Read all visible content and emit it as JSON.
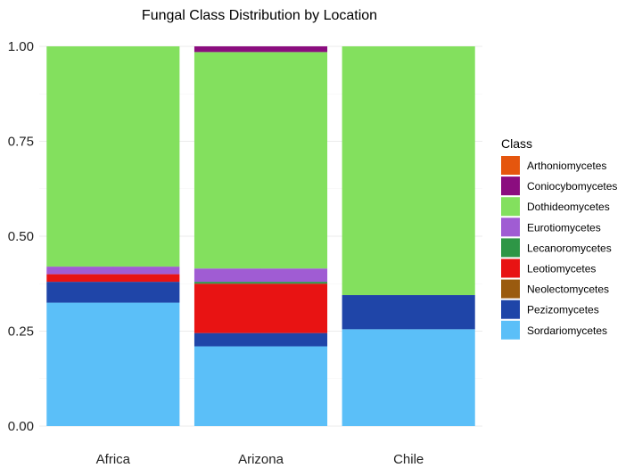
{
  "chart_data": {
    "type": "bar",
    "stacked": true,
    "normalized": true,
    "title": "Fungal Class Distribution by Location",
    "xlabel": "",
    "ylabel": "",
    "categories": [
      "Africa",
      "Arizona",
      "Chile"
    ],
    "ylim": [
      0,
      1
    ],
    "yticks": [
      "0.00",
      "0.25",
      "0.50",
      "0.75",
      "1.00"
    ],
    "grid": true,
    "legend": {
      "title": "Class",
      "placement": "right"
    },
    "series": [
      {
        "name": "Sordariomycetes",
        "color": "#5BBFF8",
        "values": [
          0.325,
          0.21,
          0.255
        ]
      },
      {
        "name": "Pezizomycetes",
        "color": "#1F45A8",
        "values": [
          0.055,
          0.035,
          0.09
        ]
      },
      {
        "name": "Neolectomycetes",
        "color": "#9A5B0F",
        "values": [
          0.0,
          0.0,
          0.0
        ]
      },
      {
        "name": "Leotiomycetes",
        "color": "#E81313",
        "values": [
          0.02,
          0.13,
          0.0
        ]
      },
      {
        "name": "Lecanoromycetes",
        "color": "#2E9646",
        "values": [
          0.0,
          0.005,
          0.0
        ]
      },
      {
        "name": "Eurotiomycetes",
        "color": "#A05CD3",
        "values": [
          0.02,
          0.035,
          0.0
        ]
      },
      {
        "name": "Dothideomycetes",
        "color": "#83E05E",
        "values": [
          0.58,
          0.57,
          0.655
        ]
      },
      {
        "name": "Coniocybomycetes",
        "color": "#8B0D7F",
        "values": [
          0.0,
          0.015,
          0.0
        ]
      },
      {
        "name": "Arthoniomycetes",
        "color": "#E5560E",
        "values": [
          0.0,
          0.0,
          0.0
        ]
      }
    ],
    "legend_order": [
      "Arthoniomycetes",
      "Coniocybomycetes",
      "Dothideomycetes",
      "Eurotiomycetes",
      "Lecanoromycetes",
      "Leotiomycetes",
      "Neolectomycetes",
      "Pezizomycetes",
      "Sordariomycetes"
    ]
  }
}
